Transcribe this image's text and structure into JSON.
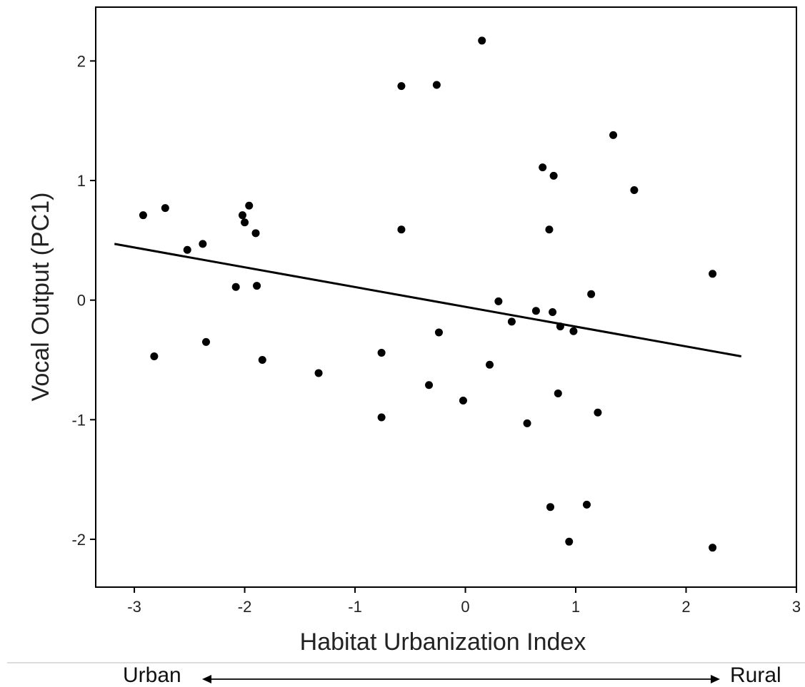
{
  "chart_data": {
    "type": "scatter",
    "xlabel": "Habitat Urbanization Index",
    "ylabel": "Vocal Output (PC1)",
    "xlim": [
      -3.35,
      3.0
    ],
    "ylim": [
      -2.4,
      2.45
    ],
    "xticks": [
      -3,
      -2,
      -1,
      0,
      1,
      2,
      3
    ],
    "yticks": [
      2,
      1,
      0,
      -1,
      -2
    ],
    "grid": false,
    "series": [
      {
        "points": [
          {
            "x": -2.92,
            "y": 0.71
          },
          {
            "x": -2.72,
            "y": 0.77
          },
          {
            "x": -2.82,
            "y": -0.47
          },
          {
            "x": -2.52,
            "y": 0.42
          },
          {
            "x": -2.38,
            "y": 0.47
          },
          {
            "x": -2.35,
            "y": -0.35
          },
          {
            "x": -2.08,
            "y": 0.11
          },
          {
            "x": -2.02,
            "y": 0.71
          },
          {
            "x": -2.0,
            "y": 0.65
          },
          {
            "x": -1.96,
            "y": 0.79
          },
          {
            "x": -1.9,
            "y": 0.56
          },
          {
            "x": -1.89,
            "y": 0.12
          },
          {
            "x": -1.84,
            "y": -0.5
          },
          {
            "x": -1.33,
            "y": -0.61
          },
          {
            "x": -0.76,
            "y": -0.44
          },
          {
            "x": -0.76,
            "y": -0.98
          },
          {
            "x": -0.58,
            "y": 1.79
          },
          {
            "x": -0.58,
            "y": 0.59
          },
          {
            "x": -0.33,
            "y": -0.71
          },
          {
            "x": -0.26,
            "y": 1.8
          },
          {
            "x": -0.24,
            "y": -0.27
          },
          {
            "x": -0.02,
            "y": -0.84
          },
          {
            "x": 0.15,
            "y": 2.17
          },
          {
            "x": 0.22,
            "y": -0.54
          },
          {
            "x": 0.3,
            "y": -0.01
          },
          {
            "x": 0.42,
            "y": -0.18
          },
          {
            "x": 0.56,
            "y": -1.03
          },
          {
            "x": 0.64,
            "y": -0.09
          },
          {
            "x": 0.7,
            "y": 1.11
          },
          {
            "x": 0.76,
            "y": 0.59
          },
          {
            "x": 0.77,
            "y": -1.73
          },
          {
            "x": 0.79,
            "y": -0.1
          },
          {
            "x": 0.8,
            "y": 1.04
          },
          {
            "x": 0.84,
            "y": -0.78
          },
          {
            "x": 0.86,
            "y": -0.22
          },
          {
            "x": 0.94,
            "y": -2.02
          },
          {
            "x": 0.98,
            "y": -0.26
          },
          {
            "x": 1.1,
            "y": -1.71
          },
          {
            "x": 1.14,
            "y": 0.05
          },
          {
            "x": 1.2,
            "y": -0.94
          },
          {
            "x": 1.34,
            "y": 1.38
          },
          {
            "x": 1.53,
            "y": 0.92
          },
          {
            "x": 2.24,
            "y": 0.22
          },
          {
            "x": 2.24,
            "y": -2.07
          }
        ]
      }
    ],
    "trendline": {
      "x": [
        -3.18,
        2.5
      ],
      "y": [
        0.47,
        -0.47
      ]
    }
  },
  "annotations": {
    "left_label": "Urban",
    "right_label": "Rural"
  }
}
